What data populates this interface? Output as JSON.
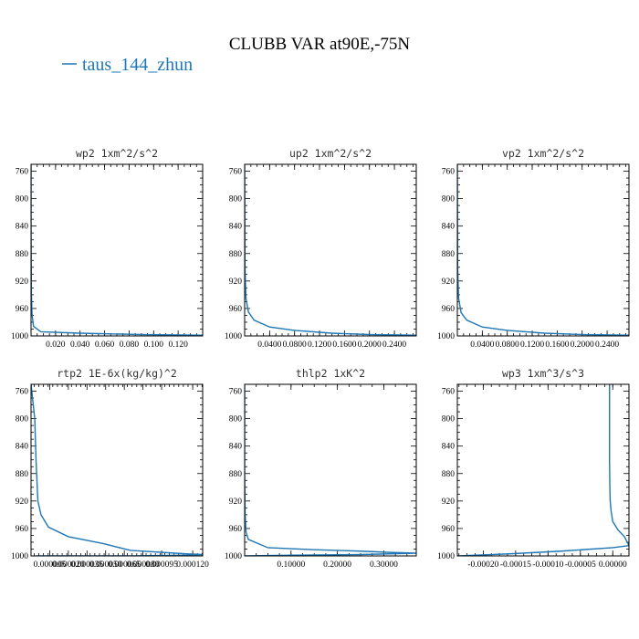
{
  "figure": {
    "title": "CLUBB VAR at90E,-75N",
    "legend": [
      "taus_144_zhun"
    ],
    "series_color": "#1f77b4"
  },
  "chart_data": [
    {
      "type": "line",
      "title": "wp2  1xm^2/s^2",
      "xlim": [
        0.0,
        0.14
      ],
      "ylim": [
        1000,
        750
      ],
      "x_ticks": [
        0.02,
        0.04,
        0.06,
        0.08,
        0.1,
        0.12
      ],
      "x_tick_labels": [
        "0.020",
        "0.040",
        "0.060",
        "0.080",
        "0.100",
        "0.120"
      ],
      "y_ticks": [
        760,
        800,
        840,
        880,
        920,
        960,
        1000
      ],
      "y_tick_labels": [
        "760",
        "800",
        "840",
        "880",
        "920",
        "960",
        "1000"
      ],
      "series": [
        {
          "x": [
            0.0,
            0.0,
            0.0003,
            0.0008,
            0.002,
            0.008,
            0.04,
            0.09,
            0.14
          ],
          "y": [
            750,
            850,
            940,
            968,
            986,
            994,
            996,
            998,
            999
          ]
        }
      ]
    },
    {
      "type": "line",
      "title": "up2  1xm^2/s^2",
      "xlim": [
        0.0,
        0.275
      ],
      "ylim": [
        1000,
        750
      ],
      "x_ticks": [
        0.04,
        0.08,
        0.12,
        0.16,
        0.2,
        0.24
      ],
      "x_tick_labels": [
        "0.0400",
        "0.0800",
        "0.1200",
        "0.1600",
        "0.2000",
        "0.2400"
      ],
      "y_ticks": [
        760,
        800,
        840,
        880,
        920,
        960,
        1000
      ],
      "y_tick_labels": [
        "760",
        "800",
        "840",
        "880",
        "920",
        "960",
        "1000"
      ],
      "series": [
        {
          "x": [
            0.0,
            0.0005,
            0.002,
            0.006,
            0.015,
            0.04,
            0.08,
            0.14,
            0.2,
            0.275
          ],
          "y": [
            750,
            900,
            945,
            965,
            977,
            987,
            992,
            996,
            998,
            999
          ]
        }
      ]
    },
    {
      "type": "line",
      "title": "vp2  1xm^2/s^2",
      "xlim": [
        0.0,
        0.275
      ],
      "ylim": [
        1000,
        750
      ],
      "x_ticks": [
        0.04,
        0.08,
        0.12,
        0.16,
        0.2,
        0.24
      ],
      "x_tick_labels": [
        "0.0400",
        "0.0800",
        "0.1200",
        "0.1600",
        "0.2000",
        "0.2400"
      ],
      "y_ticks": [
        760,
        800,
        840,
        880,
        920,
        960,
        1000
      ],
      "y_tick_labels": [
        "760",
        "800",
        "840",
        "880",
        "920",
        "960",
        "1000"
      ],
      "series": [
        {
          "x": [
            0.0,
            0.0005,
            0.002,
            0.006,
            0.015,
            0.04,
            0.08,
            0.14,
            0.2,
            0.275
          ],
          "y": [
            750,
            900,
            945,
            966,
            977,
            987,
            992,
            996,
            998,
            999
          ]
        }
      ]
    },
    {
      "type": "line",
      "title": "rtp2  1E-6x(kg/kg)^2",
      "xlim": [
        -1e-05,
        0.000128
      ],
      "ylim": [
        1000,
        750
      ],
      "x_ticks": [
        5e-06,
        2e-05,
        3.5e-05,
        5e-05,
        6.5e-05,
        8e-05,
        9.5e-05,
        0.00012
      ],
      "x_tick_labels": [
        "0.000005",
        "0.000020",
        "0.000035",
        "0.000050",
        "0.000065",
        "0.000080",
        "0.000095",
        "0.000120"
      ],
      "y_ticks": [
        760,
        800,
        840,
        880,
        920,
        960,
        1000
      ],
      "y_tick_labels": [
        "760",
        "800",
        "840",
        "880",
        "920",
        "960",
        "1000"
      ],
      "series": [
        {
          "x": [
            -1e-05,
            -7e-06,
            -6e-06,
            -5e-06,
            -4.5e-06,
            -2e-06,
            4e-06,
            2e-05,
            4.8e-05,
            7e-05,
            0.000115,
            0.000128,
            0.000115,
            7e-05,
            -6e-06
          ],
          "y": [
            750,
            800,
            860,
            900,
            920,
            940,
            958,
            972,
            982,
            992,
            997,
            998,
            999,
            1000,
            1000
          ]
        }
      ]
    },
    {
      "type": "line",
      "title": "thlp2  1xK^2",
      "xlim": [
        0.0,
        0.37
      ],
      "ylim": [
        1000,
        750
      ],
      "x_ticks": [
        0.1,
        0.2,
        0.3
      ],
      "x_tick_labels": [
        "0.10000",
        "0.20000",
        "0.30000"
      ],
      "y_ticks": [
        760,
        800,
        840,
        880,
        920,
        960,
        1000
      ],
      "y_tick_labels": [
        "760",
        "800",
        "840",
        "880",
        "920",
        "960",
        "1000"
      ],
      "series": [
        {
          "x": [
            0.0,
            0.0,
            0.001,
            0.003,
            0.008,
            0.05,
            0.15,
            0.25,
            0.32,
            0.37,
            0.25,
            0.1,
            0.0
          ],
          "y": [
            750,
            880,
            940,
            965,
            976,
            988,
            991,
            993,
            995,
            996,
            998,
            999,
            1000
          ]
        }
      ]
    },
    {
      "type": "line",
      "title": "wp3  1xm^3/s^3",
      "xlim": [
        -0.00024,
        2.5e-05
      ],
      "ylim": [
        1000,
        750
      ],
      "x_ticks": [
        -0.0002,
        -0.00015,
        -0.0001,
        -5e-05,
        0.0
      ],
      "x_tick_labels": [
        "-0.00020",
        "-0.00015",
        "-0.00010",
        "-0.00005",
        "0.00000"
      ],
      "y_ticks": [
        760,
        800,
        840,
        880,
        920,
        960,
        1000
      ],
      "y_tick_labels": [
        "760",
        "800",
        "840",
        "880",
        "920",
        "960",
        "1000"
      ],
      "series": [
        {
          "x": [
            -5e-06,
            -5e-06,
            -4.5e-06,
            -4e-06,
            -2.5e-06,
            0.0,
            8e-06,
            1.8e-05,
            2.5e-05,
            0.0,
            -8e-05,
            -0.00016,
            -0.00024
          ],
          "y": [
            750,
            860,
            900,
            920,
            935,
            950,
            962,
            972,
            985,
            988,
            993,
            997,
            1000
          ]
        }
      ]
    }
  ]
}
